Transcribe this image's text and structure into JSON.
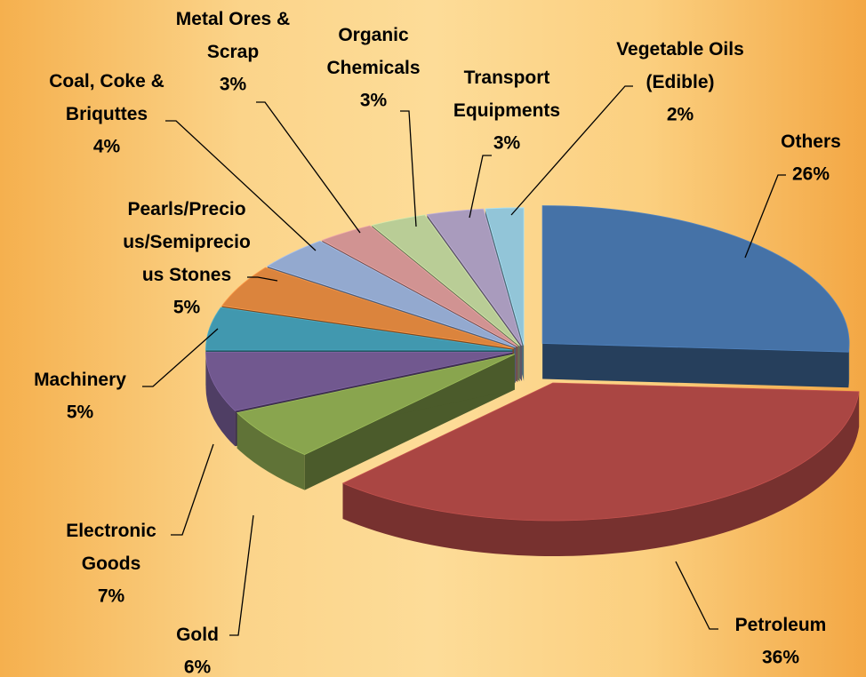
{
  "chart_data": {
    "type": "pie",
    "categories": [
      "Others",
      "Petroleum",
      "Gold",
      "Electronic Goods",
      "Machinery",
      "Pearls/Precious/Semiprecious Stones",
      "Coal, Coke & Briquttes",
      "Metal Ores & Scrap",
      "Organic Chemicals",
      "Transport Equipments",
      "Vegetable Oils (Edible)"
    ],
    "values": [
      26,
      36,
      6,
      7,
      5,
      5,
      4,
      3,
      3,
      3,
      2
    ],
    "value_labels": [
      "26%",
      "36%",
      "6%",
      "7%",
      "5%",
      "5%",
      "4%",
      "3%",
      "3%",
      "3%",
      "2%"
    ],
    "colors": [
      "#4572a7",
      "#aa4643",
      "#89a54e",
      "#71588f",
      "#4198af",
      "#db843d",
      "#93a9cf",
      "#d19392",
      "#b9cd96",
      "#a99bbd",
      "#92c5d8"
    ]
  }
}
